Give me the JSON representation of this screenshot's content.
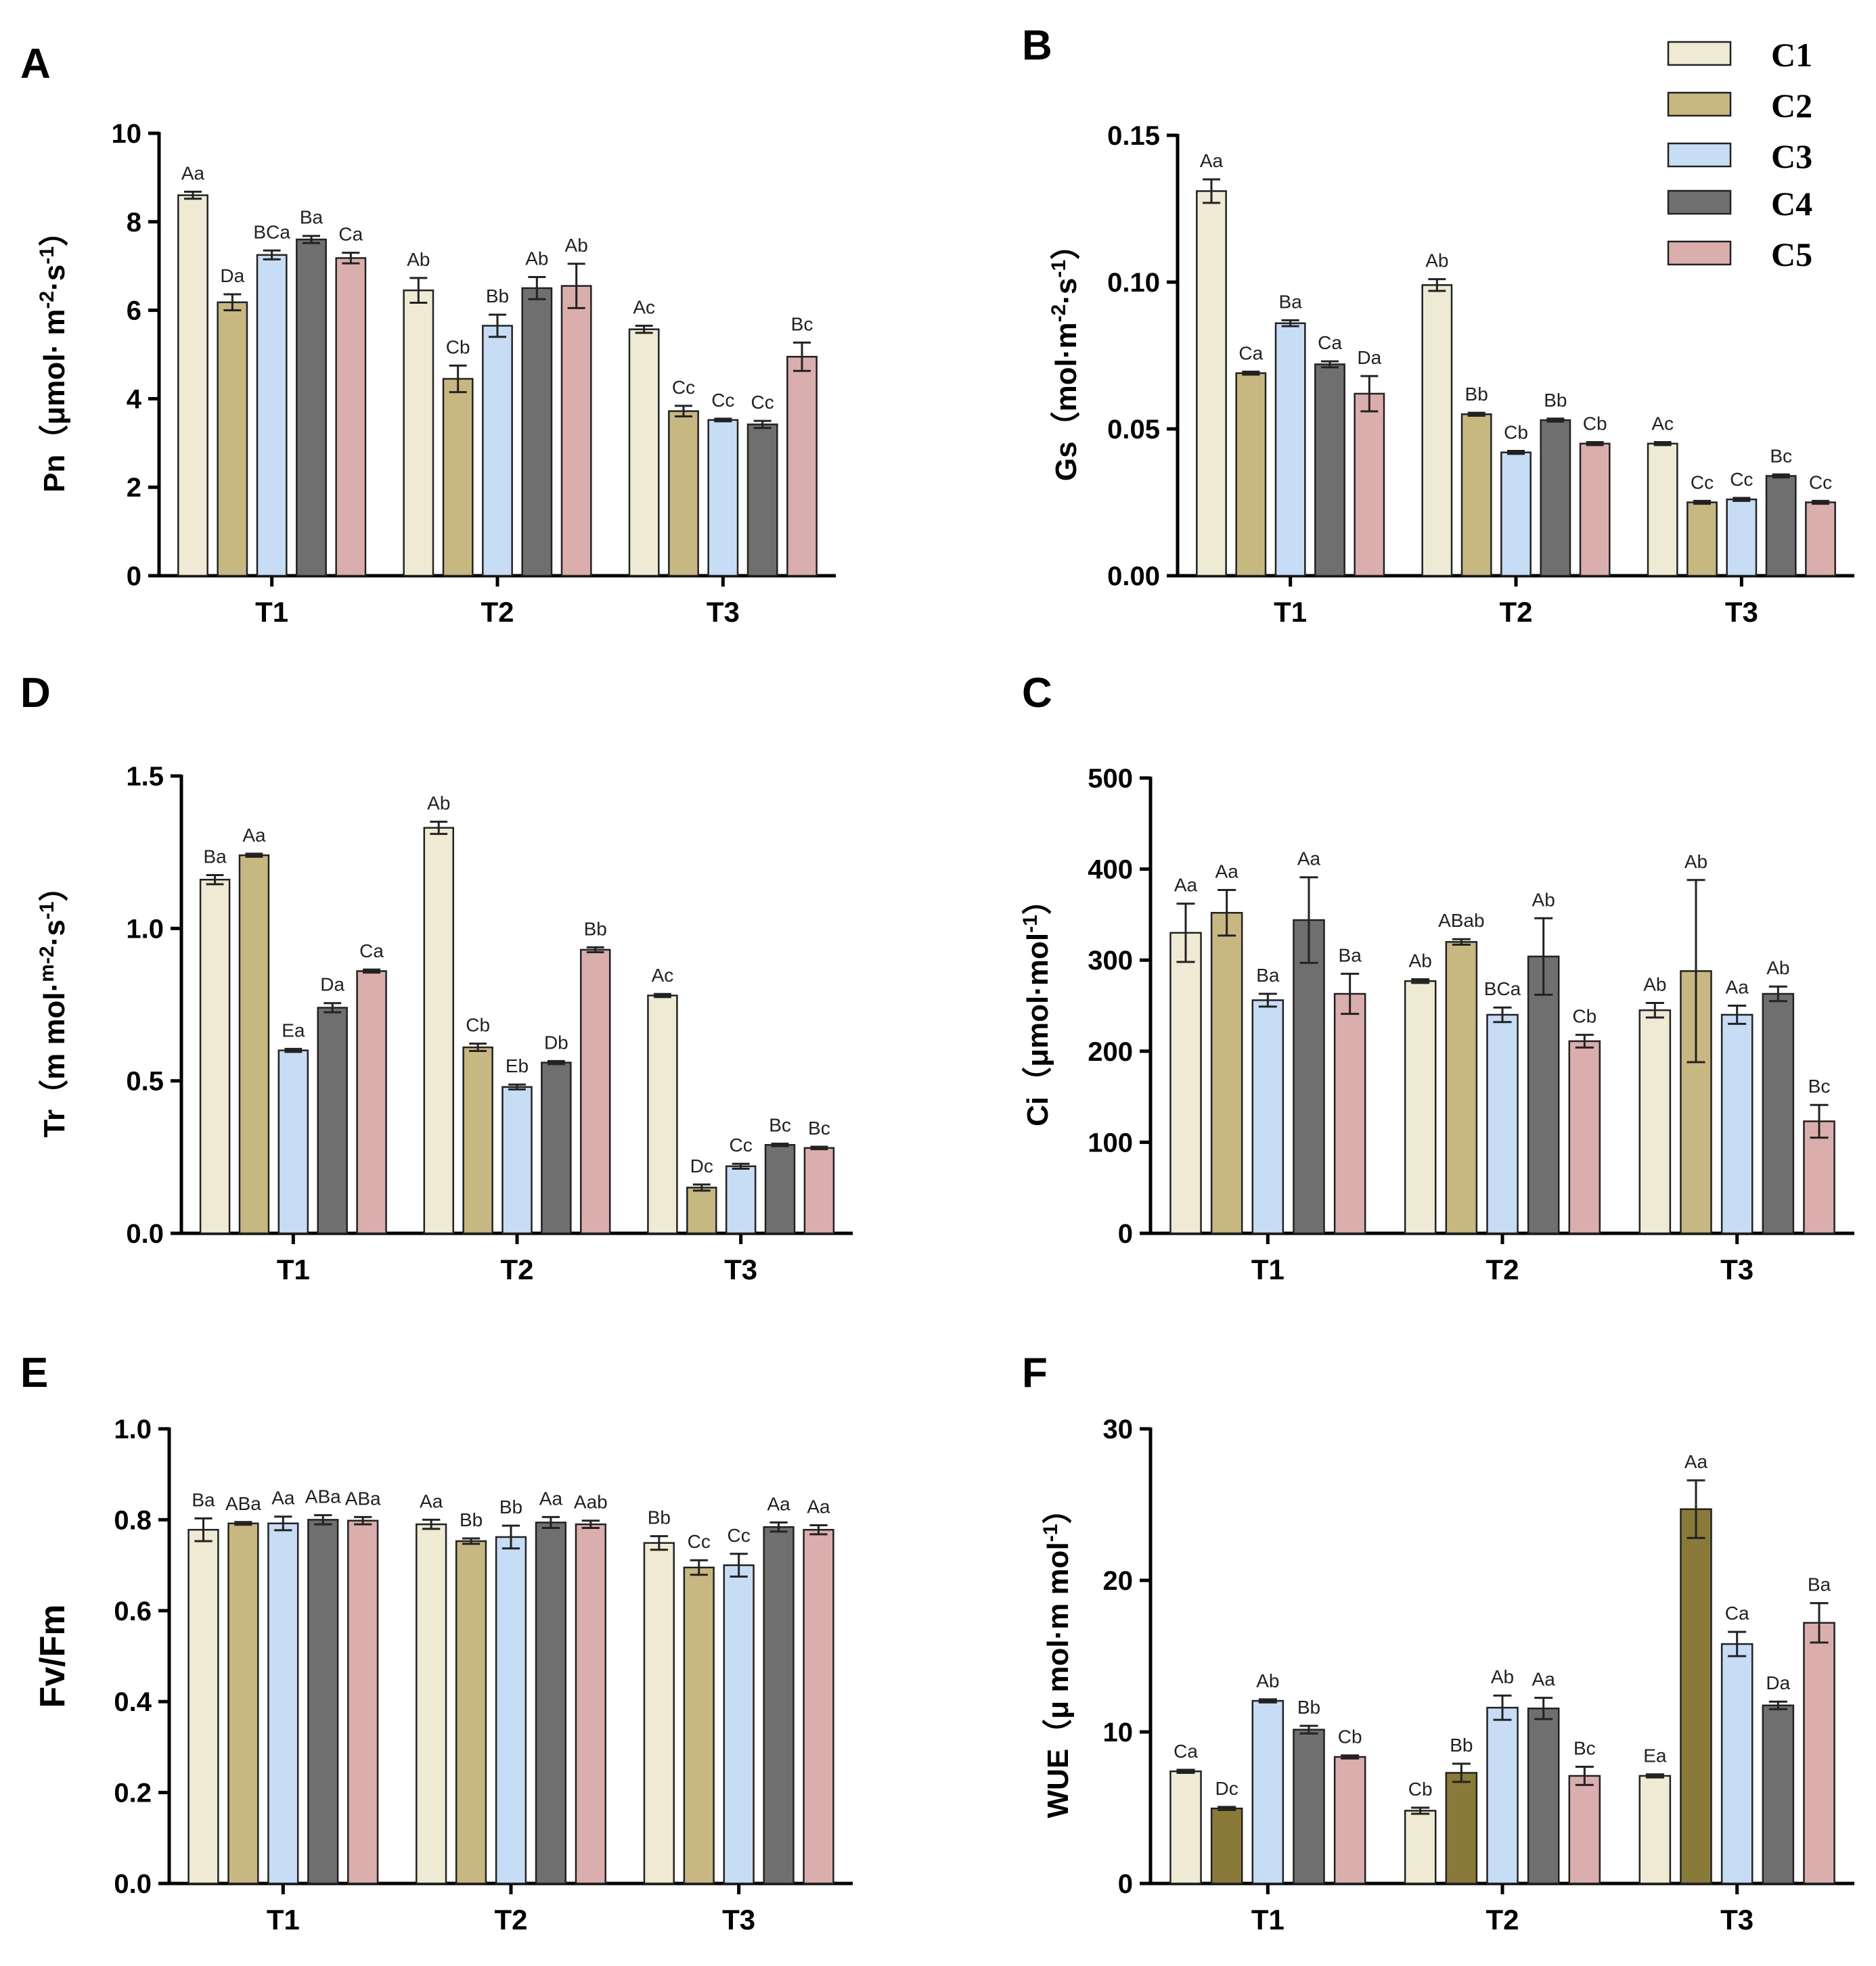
{
  "legend": {
    "items": [
      {
        "name": "C1",
        "color": "#eeead3"
      },
      {
        "name": "C2",
        "color": "#c6b880"
      },
      {
        "name": "C3",
        "color": "#c7dcf5"
      },
      {
        "name": "C4",
        "color": "#6f6f6f"
      },
      {
        "name": "C5",
        "color": "#d9aeac"
      }
    ]
  },
  "chart_data": [
    {
      "panel": "A",
      "type": "bar",
      "ylabel": "Pn（μmol· m-2·s-1）",
      "ylabel_parts": [
        "Pn（μmol· m",
        "-2",
        "·s",
        "-1",
        "）"
      ],
      "ylim": [
        0,
        10
      ],
      "yticks": [
        "0",
        "2",
        "4",
        "6",
        "8",
        "10"
      ],
      "categories": [
        "T1",
        "T2",
        "T3"
      ],
      "series": [
        {
          "name": "C1",
          "values": [
            8.6,
            6.45,
            5.57
          ],
          "errors": [
            0.08,
            0.28,
            0.08
          ],
          "labels": [
            "Aa",
            "Ab",
            "Ac"
          ]
        },
        {
          "name": "C2",
          "values": [
            6.18,
            4.45,
            3.72
          ],
          "errors": [
            0.18,
            0.3,
            0.12
          ],
          "labels": [
            "Da",
            "Cb",
            "Cc"
          ]
        },
        {
          "name": "C3",
          "values": [
            7.25,
            5.65,
            3.52
          ],
          "errors": [
            0.1,
            0.25,
            0.03
          ],
          "labels": [
            "BCa",
            "Bb",
            "Cc"
          ]
        },
        {
          "name": "C4",
          "values": [
            7.6,
            6.5,
            3.42
          ],
          "errors": [
            0.08,
            0.25,
            0.08
          ],
          "labels": [
            "Ba",
            "Ab",
            "Cc"
          ]
        },
        {
          "name": "C5",
          "values": [
            7.18,
            6.55,
            4.95
          ],
          "errors": [
            0.12,
            0.5,
            0.32
          ],
          "labels": [
            "Ca",
            "Ab",
            "Bc"
          ]
        }
      ]
    },
    {
      "panel": "B",
      "type": "bar",
      "ylabel": "Gs（mol·m-2·s-1）",
      "ylabel_parts": [
        "Gs（mol·m",
        "-2",
        "·s",
        "-1",
        "）"
      ],
      "ylim": [
        0,
        0.15
      ],
      "yticks": [
        "0.00",
        "0.05",
        "0.10",
        "0.15"
      ],
      "categories": [
        "T1",
        "T2",
        "T3"
      ],
      "series": [
        {
          "name": "C1",
          "values": [
            0.131,
            0.099,
            0.045
          ],
          "errors": [
            0.004,
            0.002,
            0.0005
          ],
          "labels": [
            "Aa",
            "Ab",
            "Ac"
          ]
        },
        {
          "name": "C2",
          "values": [
            0.069,
            0.055,
            0.025
          ],
          "errors": [
            0.0005,
            0.0005,
            0.0005
          ],
          "labels": [
            "Ca",
            "Bb",
            "Cc"
          ]
        },
        {
          "name": "C3",
          "values": [
            0.086,
            0.042,
            0.026
          ],
          "errors": [
            0.001,
            0.0005,
            0.0005
          ],
          "labels": [
            "Ba",
            "Cb",
            "Cc"
          ]
        },
        {
          "name": "C4",
          "values": [
            0.072,
            0.053,
            0.034
          ],
          "errors": [
            0.001,
            0.0005,
            0.0005
          ],
          "labels": [
            "Ca",
            "Bb",
            "Bc"
          ]
        },
        {
          "name": "C5",
          "values": [
            0.062,
            0.045,
            0.025
          ],
          "errors": [
            0.006,
            0.0005,
            0.0005
          ],
          "labels": [
            "Da",
            "Cb",
            "Cc"
          ]
        }
      ]
    },
    {
      "panel": "D",
      "type": "bar",
      "ylabel": "Tr（m mol·m-2·s-1）",
      "ylabel_parts": [
        "Tr（m mol·",
        "m-2",
        "·s",
        "-1",
        "）"
      ],
      "ylim": [
        0,
        1.5
      ],
      "yticks": [
        "0.0",
        "0.5",
        "1.0",
        "1.5"
      ],
      "categories": [
        "T1",
        "T2",
        "T3"
      ],
      "series": [
        {
          "name": "C1",
          "values": [
            1.16,
            1.33,
            0.78
          ],
          "errors": [
            0.015,
            0.02,
            0.005
          ],
          "labels": [
            "Ba",
            "Ab",
            "Ac"
          ]
        },
        {
          "name": "C2",
          "values": [
            1.24,
            0.61,
            0.15
          ],
          "errors": [
            0.005,
            0.012,
            0.01
          ],
          "labels": [
            "Aa",
            "Cb",
            "Dc"
          ]
        },
        {
          "name": "C3",
          "values": [
            0.6,
            0.48,
            0.22
          ],
          "errors": [
            0.005,
            0.008,
            0.008
          ],
          "labels": [
            "Ea",
            "Eb",
            "Cc"
          ]
        },
        {
          "name": "C4",
          "values": [
            0.74,
            0.56,
            0.29
          ],
          "errors": [
            0.015,
            0.005,
            0.004
          ],
          "labels": [
            "Da",
            "Db",
            "Bc"
          ]
        },
        {
          "name": "C5",
          "values": [
            0.86,
            0.93,
            0.28
          ],
          "errors": [
            0.005,
            0.008,
            0.004
          ],
          "labels": [
            "Ca",
            "Bb",
            "Bc"
          ]
        }
      ]
    },
    {
      "panel": "C",
      "type": "bar",
      "ylabel": "Ci（μmol·mol-1）",
      "ylabel_parts": [
        "Ci（μmol·mol",
        "-1",
        "）"
      ],
      "ylim": [
        0,
        500
      ],
      "yticks": [
        "0",
        "100",
        "200",
        "300",
        "400",
        "500"
      ],
      "categories": [
        "T1",
        "T2",
        "T3"
      ],
      "series": [
        {
          "name": "C1",
          "values": [
            330,
            277,
            245
          ],
          "errors": [
            32,
            2,
            8
          ],
          "labels": [
            "Aa",
            "Ab",
            "Ab"
          ]
        },
        {
          "name": "C2",
          "values": [
            352,
            320,
            288
          ],
          "errors": [
            25,
            3,
            100
          ],
          "labels": [
            "Aa",
            "ABab",
            "Ab"
          ]
        },
        {
          "name": "C3",
          "values": [
            256,
            240,
            240
          ],
          "errors": [
            7,
            8,
            10
          ],
          "labels": [
            "Ba",
            "BCa",
            "Aa"
          ]
        },
        {
          "name": "C4",
          "values": [
            344,
            304,
            263
          ],
          "errors": [
            47,
            42,
            8
          ],
          "labels": [
            "Aa",
            "Ab",
            "Ab"
          ]
        },
        {
          "name": "C5",
          "values": [
            263,
            211,
            123
          ],
          "errors": [
            22,
            7,
            18
          ],
          "labels": [
            "Ba",
            "Cb",
            "Bc"
          ]
        }
      ]
    },
    {
      "panel": "E",
      "type": "bar",
      "ylabel": "Fv/Fm",
      "ylabel_parts": [
        "Fv/Fm"
      ],
      "ylim": [
        0,
        1.0
      ],
      "yticks": [
        "0.0",
        "0.2",
        "0.4",
        "0.6",
        "0.8",
        "1.0"
      ],
      "categories": [
        "T1",
        "T2",
        "T3"
      ],
      "series": [
        {
          "name": "C1",
          "values": [
            0.778,
            0.79,
            0.749
          ],
          "errors": [
            0.025,
            0.01,
            0.015
          ],
          "labels": [
            "Ba",
            "Aa",
            "Bb"
          ]
        },
        {
          "name": "C2",
          "values": [
            0.792,
            0.753,
            0.695
          ],
          "errors": [
            0.003,
            0.006,
            0.016
          ],
          "labels": [
            "ABa",
            "Bb",
            "Cc"
          ]
        },
        {
          "name": "C3",
          "values": [
            0.792,
            0.762,
            0.7
          ],
          "errors": [
            0.015,
            0.025,
            0.025
          ],
          "labels": [
            "Aa",
            "Bb",
            "Cc"
          ]
        },
        {
          "name": "C4",
          "values": [
            0.8,
            0.794,
            0.784
          ],
          "errors": [
            0.01,
            0.012,
            0.01
          ],
          "labels": [
            "ABa",
            "Aa",
            "Aa"
          ]
        },
        {
          "name": "C5",
          "values": [
            0.798,
            0.79,
            0.778
          ],
          "errors": [
            0.008,
            0.008,
            0.01
          ],
          "labels": [
            "ABa",
            "Aab",
            "Aa"
          ]
        }
      ]
    },
    {
      "panel": "F",
      "type": "bar",
      "ylabel": "WUE（μ mol·m mol-1）",
      "ylabel_parts": [
        "WUE（μ mol·m mol",
        "-1",
        "）"
      ],
      "ylim": [
        0,
        30
      ],
      "yticks": [
        "0",
        "10",
        "20",
        "30"
      ],
      "categories": [
        "T1",
        "T2",
        "T3"
      ],
      "series": [
        {
          "name": "C1",
          "values": [
            7.4,
            4.8,
            7.1
          ],
          "errors": [
            0.1,
            0.2,
            0.1
          ],
          "labels": [
            "Ca",
            "Cb",
            "Ea"
          ]
        },
        {
          "name": "C2",
          "values": [
            4.95,
            7.3,
            24.7
          ],
          "errors": [
            0.1,
            0.6,
            1.9
          ],
          "labels": [
            "Dc",
            "Bb",
            "Aa"
          ]
        },
        {
          "name": "C3",
          "values": [
            12.05,
            11.6,
            15.8
          ],
          "errors": [
            0.1,
            0.8,
            0.8
          ],
          "labels": [
            "Ab",
            "Ab",
            "Ca"
          ]
        },
        {
          "name": "C4",
          "values": [
            10.15,
            11.55,
            11.75
          ],
          "errors": [
            0.25,
            0.7,
            0.25
          ],
          "labels": [
            "Bb",
            "Aa",
            "Da"
          ]
        },
        {
          "name": "C5",
          "values": [
            8.35,
            7.1,
            17.2
          ],
          "errors": [
            0.1,
            0.6,
            1.3
          ],
          "labels": [
            "Cb",
            "Bc",
            "Ba"
          ]
        }
      ]
    }
  ]
}
